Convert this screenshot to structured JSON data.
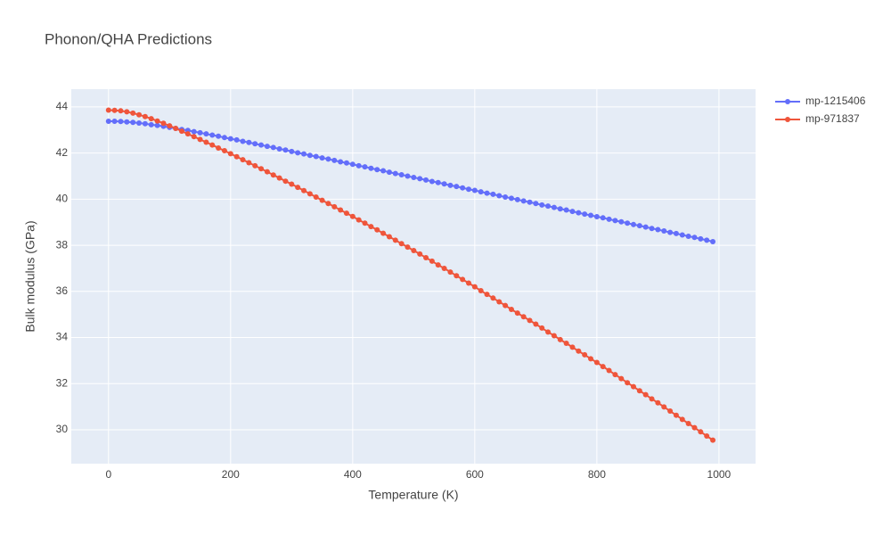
{
  "chart_data": {
    "type": "line",
    "title": "Phonon/QHA Predictions",
    "x_label": "Temperature (K)",
    "y_label": "Bulk modulus (GPa)",
    "x": [
      0,
      10,
      20,
      30,
      40,
      50,
      60,
      70,
      80,
      90,
      100,
      110,
      120,
      130,
      140,
      150,
      160,
      170,
      180,
      190,
      200,
      210,
      220,
      230,
      240,
      250,
      260,
      270,
      280,
      290,
      300,
      310,
      320,
      330,
      340,
      350,
      360,
      370,
      380,
      390,
      400,
      410,
      420,
      430,
      440,
      450,
      460,
      470,
      480,
      490,
      500,
      510,
      520,
      530,
      540,
      550,
      560,
      570,
      580,
      590,
      600,
      610,
      620,
      630,
      640,
      650,
      660,
      670,
      680,
      690,
      700,
      710,
      720,
      730,
      740,
      750,
      760,
      770,
      780,
      790,
      800,
      810,
      820,
      830,
      840,
      850,
      860,
      870,
      880,
      890,
      900,
      910,
      920,
      930,
      940,
      950,
      960,
      970,
      980,
      990
    ],
    "series": [
      {
        "name": "mp-1215406",
        "color": "#636efa",
        "values": [
          43.38,
          43.38,
          43.37,
          43.35,
          43.33,
          43.3,
          43.27,
          43.23,
          43.2,
          43.16,
          43.11,
          43.07,
          43.02,
          42.98,
          42.93,
          42.88,
          42.83,
          42.78,
          42.73,
          42.67,
          42.62,
          42.57,
          42.51,
          42.46,
          42.4,
          42.35,
          42.29,
          42.24,
          42.18,
          42.13,
          42.07,
          42.01,
          41.96,
          41.9,
          41.85,
          41.79,
          41.74,
          41.68,
          41.62,
          41.57,
          41.51,
          41.45,
          41.4,
          41.34,
          41.28,
          41.23,
          41.17,
          41.11,
          41.06,
          41.0,
          40.94,
          40.89,
          40.83,
          40.77,
          40.72,
          40.66,
          40.6,
          40.55,
          40.49,
          40.43,
          40.38,
          40.32,
          40.26,
          40.21,
          40.15,
          40.09,
          40.04,
          39.98,
          39.92,
          39.87,
          39.81,
          39.75,
          39.7,
          39.64,
          39.58,
          39.53,
          39.47,
          39.41,
          39.35,
          39.3,
          39.24,
          39.19,
          39.13,
          39.07,
          39.02,
          38.96,
          38.9,
          38.85,
          38.79,
          38.73,
          38.68,
          38.62,
          38.56,
          38.51,
          38.45,
          38.39,
          38.34,
          38.28,
          38.22,
          38.16
        ]
      },
      {
        "name": "mp-971837",
        "color": "#ef553b",
        "values": [
          43.86,
          43.85,
          43.83,
          43.79,
          43.73,
          43.66,
          43.58,
          43.49,
          43.39,
          43.29,
          43.18,
          43.07,
          42.95,
          42.83,
          42.71,
          42.59,
          42.47,
          42.35,
          42.22,
          42.1,
          41.97,
          41.84,
          41.71,
          41.58,
          41.45,
          41.32,
          41.19,
          41.05,
          40.92,
          40.78,
          40.65,
          40.51,
          40.37,
          40.23,
          40.09,
          39.95,
          39.81,
          39.67,
          39.53,
          39.39,
          39.25,
          39.1,
          38.96,
          38.81,
          38.67,
          38.52,
          38.37,
          38.22,
          38.07,
          37.92,
          37.77,
          37.62,
          37.46,
          37.31,
          37.15,
          37.0,
          36.84,
          36.68,
          36.52,
          36.36,
          36.2,
          36.03,
          35.87,
          35.71,
          35.55,
          35.39,
          35.22,
          35.06,
          34.9,
          34.74,
          34.58,
          34.41,
          34.24,
          34.08,
          33.91,
          33.75,
          33.58,
          33.41,
          33.25,
          33.08,
          32.92,
          32.74,
          32.57,
          32.39,
          32.22,
          32.04,
          31.87,
          31.69,
          31.52,
          31.34,
          31.17,
          30.99,
          30.81,
          30.63,
          30.45,
          30.27,
          30.09,
          29.91,
          29.73,
          29.55
        ]
      }
    ],
    "xlim": [
      -61,
      1060
    ],
    "ylim": [
      28.53,
      44.77
    ],
    "xticks": [
      0,
      200,
      400,
      600,
      800,
      1000
    ],
    "yticks": [
      30,
      32,
      34,
      36,
      38,
      40,
      42,
      44
    ],
    "grid": true,
    "legend": "right"
  }
}
